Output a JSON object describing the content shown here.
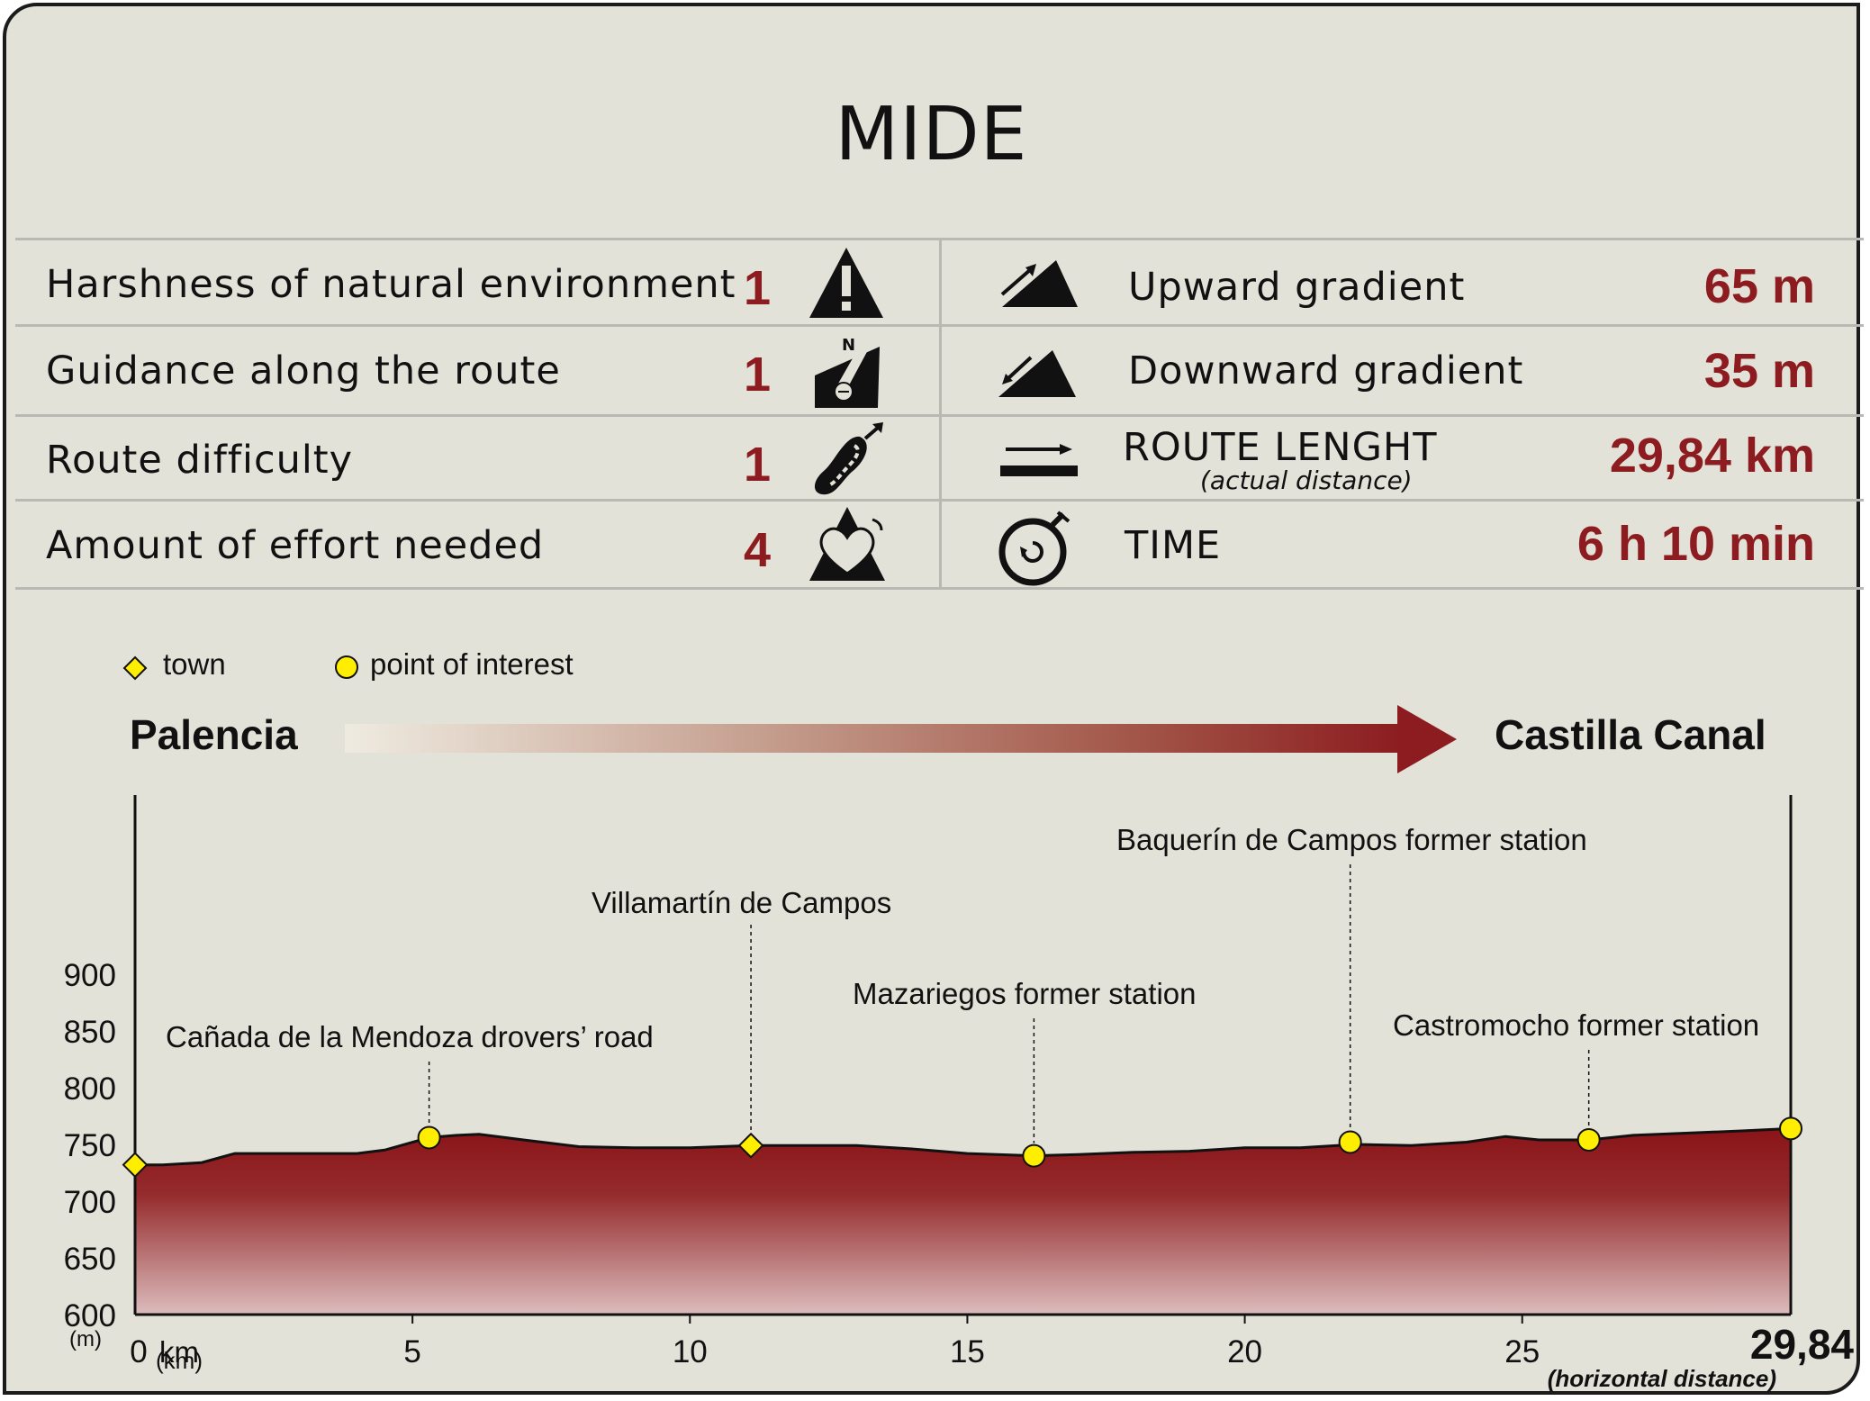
{
  "title": "MIDE",
  "mide_rows": [
    {
      "label": "Harshness of natural environment",
      "score": "1",
      "icon": "warning-mountain-icon"
    },
    {
      "label": "Guidance along the route",
      "score": "1",
      "icon": "signpost-compass-icon"
    },
    {
      "label": "Route difficulty",
      "score": "1",
      "icon": "footprint-icon"
    },
    {
      "label": "Amount of effort needed",
      "score": "4",
      "icon": "heart-mountain-icon"
    }
  ],
  "route_stats": [
    {
      "label": "Upward gradient",
      "value": "65 m",
      "icon": "uphill-icon"
    },
    {
      "label": "Downward gradient",
      "value": "35 m",
      "icon": "downhill-icon"
    },
    {
      "label": "ROUTE LENGHT",
      "sublabel": "(actual distance)",
      "value": "29,84 km",
      "icon": "distance-arrow-icon"
    },
    {
      "label": "TIME",
      "value": "6 h 10 min",
      "icon": "stopwatch-icon"
    }
  ],
  "legend": {
    "town": "town",
    "poi": "point of interest"
  },
  "route": {
    "start": "Palencia",
    "end": "Castilla Canal"
  },
  "colors": {
    "accent": "#8c1c20",
    "background": "#e3e2d9",
    "marker": "#ffee00"
  },
  "chart_data": {
    "type": "area",
    "title": "",
    "ylabel": "(m)",
    "xlabel": "(km)",
    "x_unit_label": "km",
    "horizontal_distance_label": "(horizontal distance)",
    "total_distance_label": "29,84",
    "xlim": [
      0,
      29.84
    ],
    "ylim": [
      600,
      950
    ],
    "yticks": [
      600,
      650,
      700,
      750,
      800,
      850,
      900
    ],
    "xticks": [
      0,
      5,
      10,
      15,
      20,
      25
    ],
    "x0_label": "0",
    "grid": false,
    "profile": {
      "x": [
        0,
        0.5,
        1.2,
        1.8,
        2.3,
        3,
        4,
        4.5,
        5.3,
        5.8,
        6.2,
        7,
        8,
        9,
        10,
        11.1,
        12,
        13,
        14,
        15,
        16.2,
        17,
        18,
        19,
        20,
        21,
        22,
        23,
        24,
        24.7,
        25.3,
        26.2,
        27,
        28,
        29,
        29.84
      ],
      "y": [
        732,
        732,
        734,
        742,
        742,
        742,
        742,
        745,
        756,
        758,
        759,
        754,
        748,
        747,
        747,
        749,
        749,
        749,
        746,
        742,
        740,
        741,
        743,
        744,
        747,
        747,
        750,
        749,
        752,
        757,
        754,
        754,
        758,
        760,
        762,
        764
      ]
    },
    "points": [
      {
        "name": "",
        "x": 0,
        "y": 732,
        "kind": "town"
      },
      {
        "name": "Cañada de la Mendoza drovers’ road",
        "x": 5.3,
        "y": 756,
        "kind": "poi"
      },
      {
        "name": "Villamartín de Campos",
        "x": 11.1,
        "y": 749,
        "kind": "town"
      },
      {
        "name": "Mazariegos former station",
        "x": 16.2,
        "y": 740,
        "kind": "poi"
      },
      {
        "name": "Baquerín de Campos former station",
        "x": 21.9,
        "y": 752,
        "kind": "poi"
      },
      {
        "name": "Castromocho former station",
        "x": 26.2,
        "y": 754,
        "kind": "poi"
      },
      {
        "name": "",
        "x": 29.84,
        "y": 764,
        "kind": "poi"
      }
    ]
  }
}
